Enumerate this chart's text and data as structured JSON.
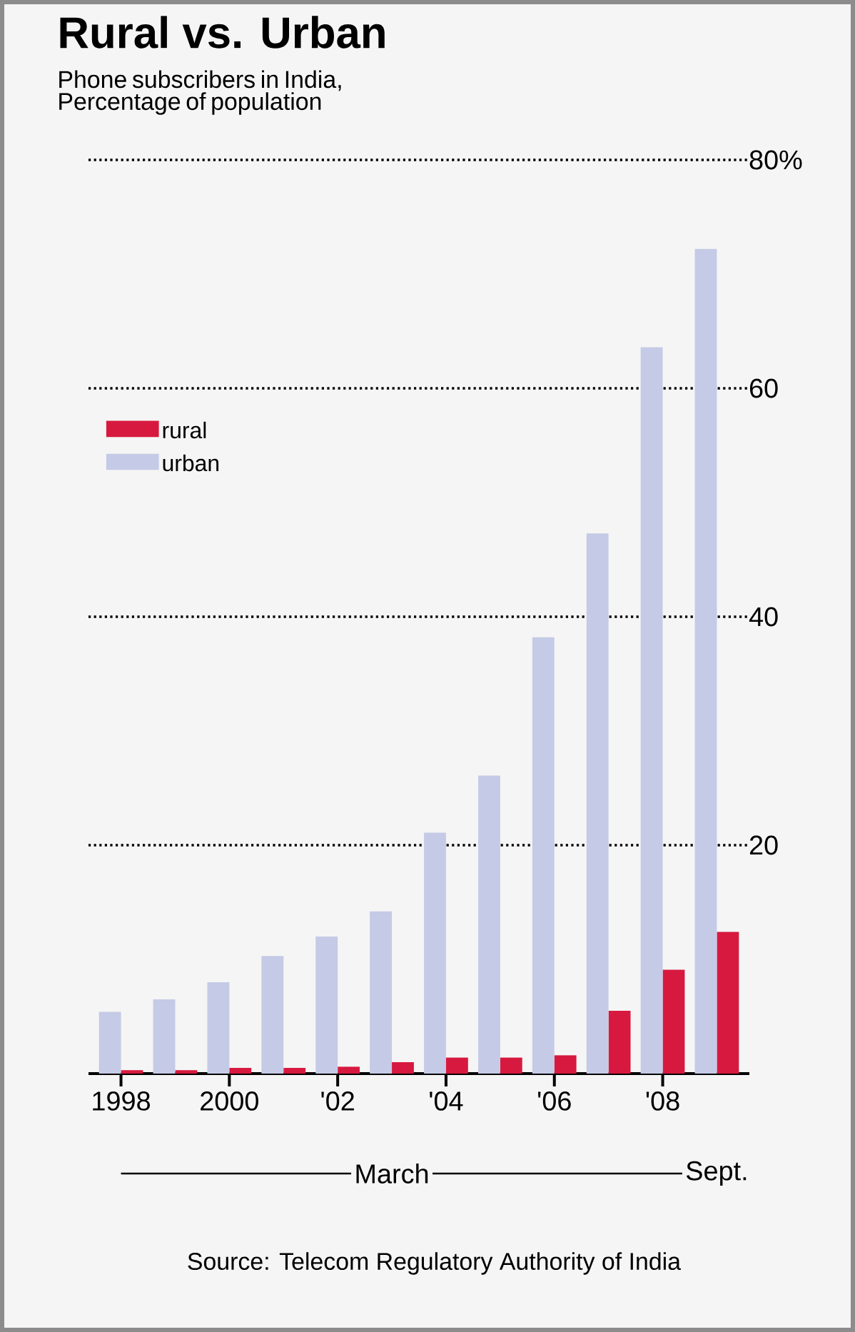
{
  "chart_data": {
    "type": "bar",
    "title": "Rural vs. Urban",
    "subtitle": "Phone subscribers in India, Percentage of population",
    "categories": [
      "1998",
      null,
      "2000",
      null,
      "'02",
      null,
      "'04",
      null,
      "'06",
      null,
      "'08",
      null
    ],
    "series": [
      {
        "name": "rural",
        "color": "#d7193f",
        "values": [
          0.3,
          0.3,
          0.5,
          0.5,
          0.6,
          1.0,
          1.4,
          1.4,
          1.6,
          5.5,
          9.1,
          12.4
        ]
      },
      {
        "name": "urban",
        "color": "#c5cae6",
        "values": [
          5.4,
          6.5,
          8.0,
          10.3,
          12.0,
          14.2,
          21.1,
          26.1,
          38.2,
          47.3,
          63.6,
          72.2
        ]
      }
    ],
    "ylim": [
      0,
      80
    ],
    "yticks": [
      20,
      40,
      60,
      {
        "value": 80,
        "label": "80%"
      }
    ],
    "grid": "y",
    "legend": "top left",
    "annotations": [
      "March",
      "Sept.",
      "Source: Telecom Regulatory Authority of India"
    ]
  }
}
